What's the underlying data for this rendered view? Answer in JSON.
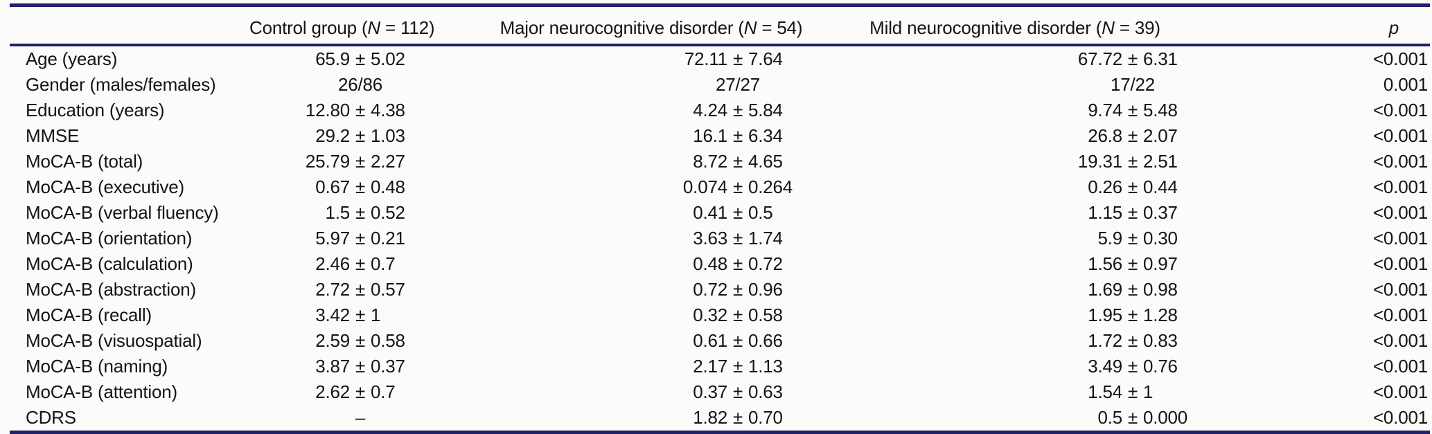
{
  "accent_color": "#20206b",
  "text_color": "#141414",
  "background_color": "#fbfbfa",
  "chart_data": {
    "type": "table",
    "columns": [
      "",
      "Control group (N = 112)",
      "Major neurocognitive disorder (N = 54)",
      "Mild neurocognitive disorder (N = 39)",
      "p"
    ],
    "rows": [
      {
        "label": "Age (years)",
        "control": "65.9 ± 5.02",
        "major": "72.11 ± 7.64",
        "mild": "67.72 ± 6.31",
        "p": "<0.001"
      },
      {
        "label": "Gender (males/females)",
        "control": "26/86",
        "major": "27/27",
        "mild": "17/22",
        "p": "0.001"
      },
      {
        "label": "Education (years)",
        "control": "12.80 ± 4.38",
        "major": "4.24 ± 5.84",
        "mild": "9.74 ± 5.48",
        "p": "<0.001"
      },
      {
        "label": "MMSE",
        "control": "29.2 ± 1.03",
        "major": "16.1 ± 6.34",
        "mild": "26.8 ± 2.07",
        "p": "<0.001"
      },
      {
        "label": "MoCA-B (total)",
        "control": "25.79 ± 2.27",
        "major": "8.72 ± 4.65",
        "mild": "19.31 ± 2.51",
        "p": "<0.001"
      },
      {
        "label": "MoCA-B (executive)",
        "control": "0.67 ± 0.48",
        "major": "0.074 ± 0.264",
        "mild": "0.26 ± 0.44",
        "p": "<0.001"
      },
      {
        "label": "MoCA-B (verbal fluency)",
        "control": "1.5 ± 0.52",
        "major": "0.41 ± 0.5",
        "mild": "1.15 ± 0.37",
        "p": "<0.001"
      },
      {
        "label": "MoCA-B (orientation)",
        "control": "5.97 ± 0.21",
        "major": "3.63 ± 1.74",
        "mild": "5.9 ± 0.30",
        "p": "<0.001"
      },
      {
        "label": "MoCA-B (calculation)",
        "control": "2.46 ± 0.7",
        "major": "0.48 ± 0.72",
        "mild": "1.56 ± 0.97",
        "p": "<0.001"
      },
      {
        "label": "MoCA-B (abstraction)",
        "control": "2.72 ± 0.57",
        "major": "0.72 ± 0.96",
        "mild": "1.69 ± 0.98",
        "p": "<0.001"
      },
      {
        "label": "MoCA-B (recall)",
        "control": "3.42 ± 1",
        "major": "0.32 ± 0.58",
        "mild": "1.95 ± 1.28",
        "p": "<0.001"
      },
      {
        "label": "MoCA-B (visuospatial)",
        "control": "2.59 ± 0.58",
        "major": "0.61 ± 0.66",
        "mild": "1.72 ± 0.83",
        "p": "<0.001"
      },
      {
        "label": "MoCA-B (naming)",
        "control": "3.87 ± 0.37",
        "major": "2.17 ± 1.13",
        "mild": "3.49 ± 0.76",
        "p": "<0.001"
      },
      {
        "label": "MoCA-B (attention)",
        "control": "2.62 ± 0.7",
        "major": "0.37 ± 0.63",
        "mild": "1.54 ± 1",
        "p": "<0.001"
      },
      {
        "label": "CDRS",
        "control": "–",
        "major": "1.82 ± 0.70",
        "mild": "0.5 ± 0.000",
        "p": "<0.001"
      }
    ]
  }
}
